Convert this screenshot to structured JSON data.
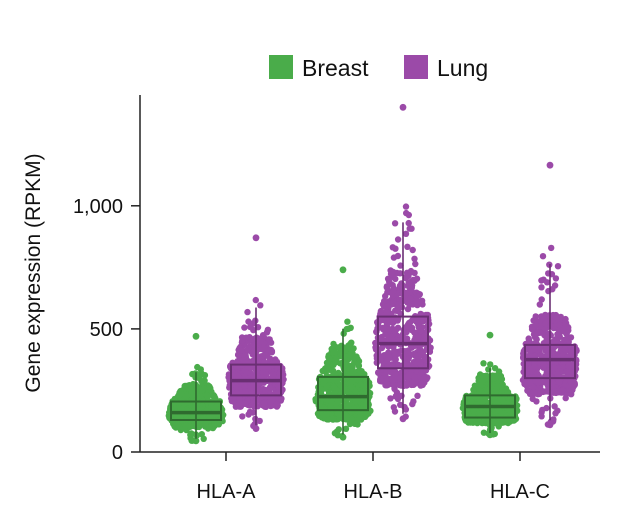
{
  "chart_data": {
    "type": "box",
    "categories": [
      "HLA-A",
      "HLA-B",
      "HLA-C"
    ],
    "ylabel": "Gene expression (RPKM)",
    "xlabel": "",
    "ylim": [
      0,
      1450
    ],
    "yticks": [
      {
        "value": 0,
        "label": "0"
      },
      {
        "value": 500,
        "label": "500"
      },
      {
        "value": 1000,
        "label": "1,000"
      }
    ],
    "legend_position": "top",
    "series": [
      {
        "name": "Breast",
        "color": "#4aac4a",
        "box_color": "#2f6b2f",
        "boxes": [
          {
            "q1": 130,
            "median": 160,
            "q3": 205,
            "min": 45,
            "max": 470
          },
          {
            "q1": 170,
            "median": 225,
            "q3": 305,
            "min": 60,
            "max": 740
          },
          {
            "q1": 140,
            "median": 185,
            "q3": 230,
            "min": 70,
            "max": 475
          }
        ]
      },
      {
        "name": "Lung",
        "color": "#9b4aa8",
        "box_color": "#6a2f73",
        "boxes": [
          {
            "q1": 230,
            "median": 290,
            "q3": 355,
            "min": 95,
            "max": 870
          },
          {
            "q1": 340,
            "median": 440,
            "q3": 550,
            "min": 135,
            "max": 1400
          },
          {
            "q1": 300,
            "median": 375,
            "q3": 435,
            "min": 110,
            "max": 1165
          }
        ]
      }
    ]
  }
}
